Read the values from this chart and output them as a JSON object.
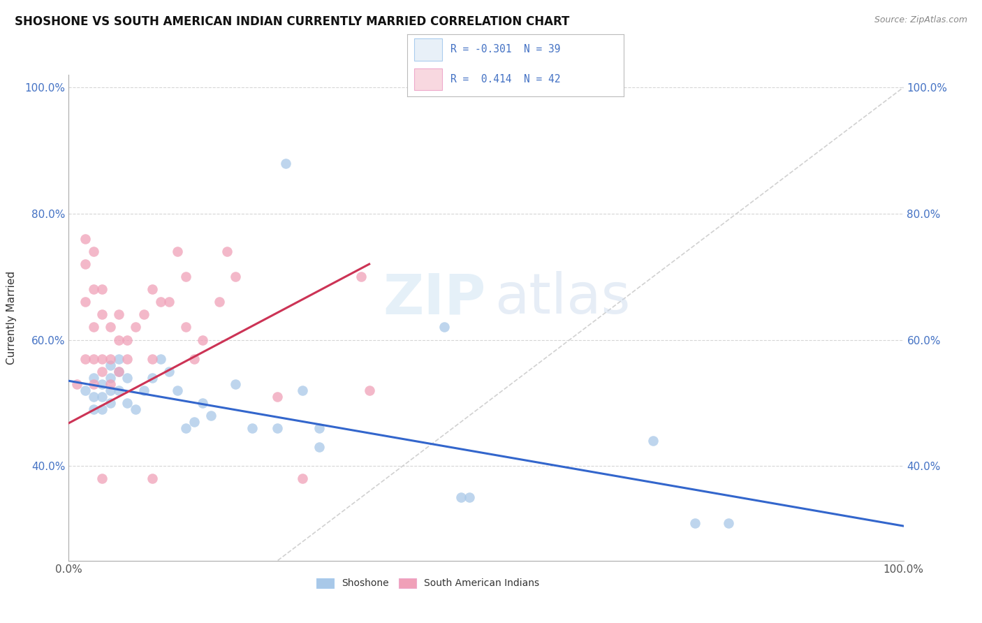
{
  "title": "SHOSHONE VS SOUTH AMERICAN INDIAN CURRENTLY MARRIED CORRELATION CHART",
  "source": "Source: ZipAtlas.com",
  "ylabel": "Currently Married",
  "blue_color": "#A8C8E8",
  "pink_color": "#F0A0B8",
  "blue_line_color": "#3366CC",
  "pink_line_color": "#CC3355",
  "diagonal_color": "#CCCCCC",
  "grid_color": "#CCCCCC",
  "legend_box_color": "#E8F0F8",
  "legend_box_pink": "#F8D8E0",
  "shoshone_points": [
    [
      0.02,
      0.52
    ],
    [
      0.03,
      0.54
    ],
    [
      0.03,
      0.51
    ],
    [
      0.03,
      0.49
    ],
    [
      0.04,
      0.53
    ],
    [
      0.04,
      0.51
    ],
    [
      0.04,
      0.49
    ],
    [
      0.05,
      0.56
    ],
    [
      0.05,
      0.54
    ],
    [
      0.05,
      0.52
    ],
    [
      0.05,
      0.5
    ],
    [
      0.06,
      0.57
    ],
    [
      0.06,
      0.55
    ],
    [
      0.06,
      0.52
    ],
    [
      0.07,
      0.54
    ],
    [
      0.07,
      0.5
    ],
    [
      0.08,
      0.49
    ],
    [
      0.09,
      0.52
    ],
    [
      0.1,
      0.54
    ],
    [
      0.11,
      0.57
    ],
    [
      0.12,
      0.55
    ],
    [
      0.13,
      0.52
    ],
    [
      0.14,
      0.46
    ],
    [
      0.15,
      0.47
    ],
    [
      0.16,
      0.5
    ],
    [
      0.17,
      0.48
    ],
    [
      0.2,
      0.53
    ],
    [
      0.22,
      0.46
    ],
    [
      0.25,
      0.46
    ],
    [
      0.26,
      0.88
    ],
    [
      0.28,
      0.52
    ],
    [
      0.3,
      0.46
    ],
    [
      0.3,
      0.43
    ],
    [
      0.45,
      0.62
    ],
    [
      0.47,
      0.35
    ],
    [
      0.48,
      0.35
    ],
    [
      0.7,
      0.44
    ],
    [
      0.75,
      0.31
    ],
    [
      0.79,
      0.31
    ]
  ],
  "south_american_points": [
    [
      0.01,
      0.53
    ],
    [
      0.02,
      0.76
    ],
    [
      0.02,
      0.72
    ],
    [
      0.02,
      0.66
    ],
    [
      0.02,
      0.57
    ],
    [
      0.03,
      0.74
    ],
    [
      0.03,
      0.68
    ],
    [
      0.03,
      0.62
    ],
    [
      0.03,
      0.57
    ],
    [
      0.03,
      0.53
    ],
    [
      0.04,
      0.68
    ],
    [
      0.04,
      0.64
    ],
    [
      0.04,
      0.57
    ],
    [
      0.04,
      0.55
    ],
    [
      0.04,
      0.38
    ],
    [
      0.05,
      0.62
    ],
    [
      0.05,
      0.57
    ],
    [
      0.05,
      0.53
    ],
    [
      0.06,
      0.64
    ],
    [
      0.06,
      0.6
    ],
    [
      0.06,
      0.55
    ],
    [
      0.07,
      0.6
    ],
    [
      0.07,
      0.57
    ],
    [
      0.08,
      0.62
    ],
    [
      0.09,
      0.64
    ],
    [
      0.1,
      0.68
    ],
    [
      0.1,
      0.57
    ],
    [
      0.1,
      0.38
    ],
    [
      0.11,
      0.66
    ],
    [
      0.12,
      0.66
    ],
    [
      0.13,
      0.74
    ],
    [
      0.14,
      0.7
    ],
    [
      0.14,
      0.62
    ],
    [
      0.15,
      0.57
    ],
    [
      0.16,
      0.6
    ],
    [
      0.18,
      0.66
    ],
    [
      0.19,
      0.74
    ],
    [
      0.2,
      0.7
    ],
    [
      0.25,
      0.51
    ],
    [
      0.28,
      0.38
    ],
    [
      0.35,
      0.7
    ],
    [
      0.36,
      0.52
    ]
  ],
  "xlim": [
    0.0,
    1.0
  ],
  "ylim": [
    0.25,
    1.02
  ],
  "yticks": [
    0.4,
    0.6,
    0.8,
    1.0
  ],
  "ytick_labels": [
    "40.0%",
    "60.0%",
    "80.0%",
    "100.0%"
  ],
  "xtick_positions": [
    0.0,
    1.0
  ],
  "xtick_labels": [
    "0.0%",
    "100.0%"
  ],
  "shosh_line_x": [
    0.0,
    1.0
  ],
  "shosh_line_y": [
    0.535,
    0.305
  ],
  "sam_line_x": [
    0.0,
    0.36
  ],
  "sam_line_y": [
    0.468,
    0.72
  ]
}
